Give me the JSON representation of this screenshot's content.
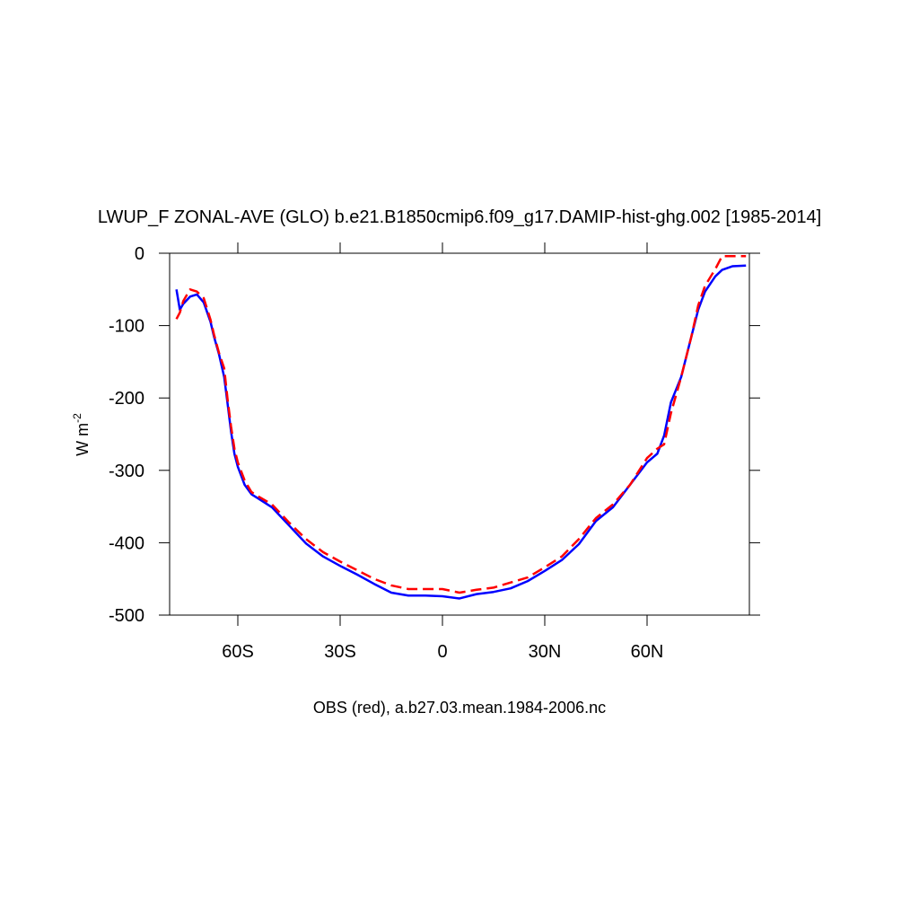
{
  "chart_data": {
    "type": "line",
    "title": "LWUP_F ZONAL-AVE (GLO) b.e21.B1850cmip6.f09_g17.DAMIP-hist-ghg.002 [1985-2014]",
    "x_label": "OBS (red), a.b27.03.mean.1984-2006.nc",
    "y_label": "W m",
    "y_label_superscript": "-2",
    "x": [
      -78,
      -77,
      -76,
      -74,
      -72,
      -70,
      -68,
      -67,
      -65.5,
      -64,
      -63,
      -62,
      -61,
      -60,
      -58,
      -56,
      -54,
      -50,
      -45,
      -40,
      -35,
      -30,
      -25,
      -20,
      -15,
      -10,
      -5,
      0,
      5,
      10,
      15,
      20,
      25,
      30,
      35,
      40,
      45,
      50,
      55,
      60,
      63,
      65,
      67,
      70,
      73,
      75,
      77,
      80,
      82,
      85,
      89
    ],
    "series": [
      {
        "color": "#0000ff",
        "line_style": "solid",
        "values": [
          -50,
          -78,
          -70,
          -60,
          -57,
          -68,
          -95,
          -115,
          -140,
          -171,
          -208,
          -246,
          -277,
          -295,
          -320,
          -333,
          -339,
          -351,
          -376,
          -401,
          -419,
          -432,
          -444,
          -457,
          -469,
          -473,
          -473,
          -474,
          -477,
          -471,
          -468,
          -463,
          -453,
          -439,
          -424,
          -402,
          -370,
          -351,
          -320,
          -289,
          -277,
          -252,
          -206,
          -171,
          -115,
          -78,
          -53,
          -32,
          -23,
          -18,
          -17
        ]
      },
      {
        "color": "#ff0000",
        "line_style": "dashed",
        "values": [
          -91,
          -82,
          -66,
          -50,
          -53,
          -62,
          -92,
          -112,
          -138,
          -159,
          -202,
          -239,
          -270,
          -289,
          -314,
          -330,
          -336,
          -347,
          -372,
          -395,
          -413,
          -426,
          -438,
          -450,
          -459,
          -464,
          -464,
          -464,
          -469,
          -465,
          -462,
          -455,
          -448,
          -434,
          -419,
          -395,
          -366,
          -347,
          -320,
          -283,
          -270,
          -264,
          -221,
          -171,
          -115,
          -72,
          -45,
          -22,
          -4,
          -4,
          -4
        ]
      }
    ],
    "xlim": [
      -80,
      90
    ],
    "ylim": [
      -500,
      0
    ],
    "xticks": [
      {
        "value": -60,
        "label": "60S"
      },
      {
        "value": -30,
        "label": "30S"
      },
      0,
      {
        "value": 30,
        "label": "30N"
      },
      {
        "value": 60,
        "label": "60N"
      }
    ],
    "yticks": [
      0,
      -100,
      -200,
      -300,
      -400,
      -500
    ]
  }
}
